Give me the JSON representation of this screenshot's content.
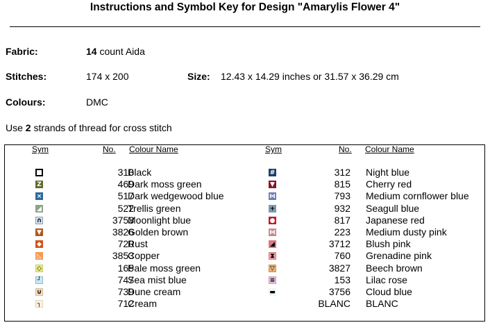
{
  "title": "Instructions and Symbol Key for Design \"Amarylis Flower 4\"",
  "fabric": {
    "label": "Fabric:",
    "count": "14",
    "rest": " count Aida"
  },
  "stitches": {
    "label": "Stitches:",
    "value": "174 x 200"
  },
  "size": {
    "label": "Size:",
    "value": "12.43 x 14.29 inches or 31.57 x 36.29 cm"
  },
  "colours": {
    "label": "Colours:",
    "value": "DMC"
  },
  "instruction": {
    "pre": "Use ",
    "count": "2",
    "post": " strands of thread for cross stitch"
  },
  "table": {
    "headers": {
      "sym": "Sym",
      "no": "No.",
      "name": "Colour Name"
    },
    "left": [
      {
        "no": "310",
        "name": "Black",
        "color": "#ffffff",
        "border": "#000000",
        "glyph": "",
        "glyph_color": "#000000"
      },
      {
        "no": "469",
        "name": "Dark moss green",
        "color": "#5c6b2c",
        "border": "#5c6b2c",
        "glyph": "Z",
        "glyph_color": "#ffffff"
      },
      {
        "no": "517",
        "name": "Dark wedgewood blue",
        "color": "#2a6aa0",
        "border": "#2a6aa0",
        "glyph": "×",
        "glyph_color": "#ffffff"
      },
      {
        "no": "522",
        "name": "Trellis green",
        "color": "#8fa38a",
        "border": "#8fa38a",
        "glyph": "◢",
        "glyph_color": "#ffffff"
      },
      {
        "no": "3753",
        "name": "Moonlight blue",
        "color": "#d5e2ef",
        "border": "#8aa0b8",
        "glyph": "∩",
        "glyph_color": "#000000"
      },
      {
        "no": "3826",
        "name": "Golden brown",
        "color": "#b3581e",
        "border": "#b3581e",
        "glyph": "▼",
        "glyph_color": "#ffffff"
      },
      {
        "no": "720",
        "name": "Rust",
        "color": "#d4541a",
        "border": "#d4541a",
        "glyph": "◆",
        "glyph_color": "#ffffff"
      },
      {
        "no": "3853",
        "name": "Copper",
        "color": "#f39a55",
        "border": "#f39a55",
        "glyph": "◺",
        "glyph_color": "#ffffff"
      },
      {
        "no": "165",
        "name": "Pale moss green",
        "color": "#e9ed8a",
        "border": "#c9cd6a",
        "glyph": "◇",
        "glyph_color": "#000000"
      },
      {
        "no": "747",
        "name": "Sea mist blue",
        "color": "#c8e8f2",
        "border": "#98b8c2",
        "glyph": "┘",
        "glyph_color": "#000000"
      },
      {
        "no": "739",
        "name": "Dune cream",
        "color": "#f5dcbd",
        "border": "#d5bc9d",
        "glyph": "∪",
        "glyph_color": "#000000"
      },
      {
        "no": "712",
        "name": "Cream",
        "color": "#fbf2dd",
        "border": "#e0d6c0",
        "glyph": "┐",
        "glyph_color": "#000000"
      }
    ],
    "right": [
      {
        "no": "312",
        "name": "Night blue",
        "color": "#1f3d6b",
        "border": "#1f3d6b",
        "glyph": "#",
        "glyph_color": "#ffffff"
      },
      {
        "no": "815",
        "name": "Cherry red",
        "color": "#8a1428",
        "border": "#8a1428",
        "glyph": "▼",
        "glyph_color": "#ffffff"
      },
      {
        "no": "793",
        "name": "Medium cornflower blue",
        "color": "#6f7fb5",
        "border": "#6f7fb5",
        "glyph": "⋈",
        "glyph_color": "#ffffff"
      },
      {
        "no": "932",
        "name": "Seagull blue",
        "color": "#7f99b3",
        "border": "#7f99b3",
        "glyph": "+",
        "glyph_color": "#000000"
      },
      {
        "no": "817",
        "name": "Japanese red",
        "color": "#c01a2a",
        "border": "#c01a2a",
        "glyph": "●",
        "glyph_color": "#ffffff"
      },
      {
        "no": "223",
        "name": "Medium dusty pink",
        "color": "#c88a8e",
        "border": "#c88a8e",
        "glyph": "⋈",
        "glyph_color": "#ffffff"
      },
      {
        "no": "3712",
        "name": "Blush pink",
        "color": "#d87a80",
        "border": "#d87a80",
        "glyph": "◢",
        "glyph_color": "#000000"
      },
      {
        "no": "760",
        "name": "Grenadine pink",
        "color": "#f2a0a5",
        "border": "#d2808a",
        "glyph": "⧗",
        "glyph_color": "#000000"
      },
      {
        "no": "3827",
        "name": "Beech brown",
        "color": "#f0b070",
        "border": "#d09050",
        "glyph": "▽",
        "glyph_color": "#000000"
      },
      {
        "no": "153",
        "name": "Lilac rose",
        "color": "#e8c0dc",
        "border": "#c8a0bc",
        "glyph": "≡",
        "glyph_color": "#000000"
      },
      {
        "no": "3756",
        "name": "Cloud blue",
        "color": "#eef6fa",
        "border": "#eef6fa",
        "glyph": "▬",
        "glyph_color": "#000000"
      },
      {
        "no": "BLANC",
        "name": "BLANC",
        "color": "#ffffff",
        "border": "#ffffff",
        "glyph": "",
        "glyph_color": "#000000"
      }
    ]
  }
}
